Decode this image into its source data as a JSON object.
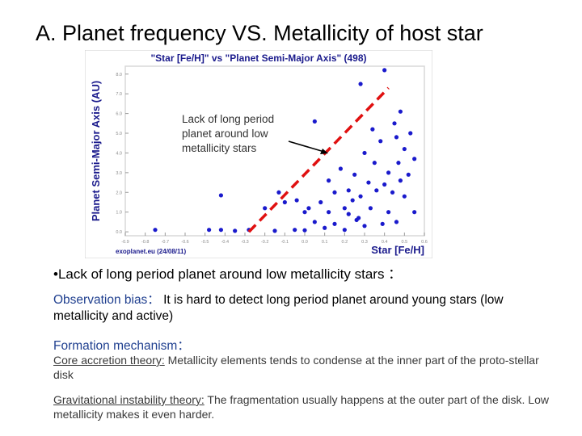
{
  "slide": {
    "title": "A. Planet frequency VS. Metallicity of host star",
    "bullet": "•Lack of long period planet around low metallicity stars ：",
    "observation_label": "Observation bias：",
    "observation_text": "It is hard to detect long period planet around young stars (low metallicity and active)",
    "formation_label": "Formation mechanism：",
    "core_label": "Core accretion theory:",
    "core_text": " Metallicity elements tends to condense at the inner part of the proto-stellar disk",
    "gravity_label": "Gravitational instability theory:",
    "gravity_text": " The fragmentation usually happens at the outer part of the disk. Low metallicity makes it even harder."
  },
  "chart_data": {
    "type": "scatter",
    "title": "\"Star [Fe/H]\"  vs \"Planet Semi-Major Axis\" (498)",
    "xlabel": "Star [Fe/H]",
    "ylabel": "Planet Semi-Major Axis (AU)",
    "source": "exoplanet.eu (24/08/11)",
    "annotation": [
      "Lack of long period",
      "planet around low",
      "metallicity stars"
    ],
    "xlim": [
      -0.9,
      0.6
    ],
    "ylim": [
      -0.2,
      8.4
    ],
    "grid": false,
    "colors": {
      "point": "#1a1acc",
      "boundary": "#e01010",
      "border": "#d8d8d8"
    },
    "boundary_line": [
      [
        -0.28,
        0.0
      ],
      [
        0.42,
        7.3
      ]
    ],
    "x_ticks": [
      "-0.9",
      "-0.8",
      "-0.7",
      "-0.6",
      "-0.5",
      "-0.4",
      "-0.3",
      "-0.2",
      "-0.1",
      "0.0",
      "0.1",
      "0.2",
      "0.3",
      "0.4",
      "0.5",
      "0.6"
    ],
    "y_ticks": [
      "0.0",
      "1.0",
      "2.0",
      "3.0",
      "4.0",
      "5.0",
      "6.0",
      "7.0",
      "8.0"
    ],
    "points": [
      [
        -0.75,
        0.1
      ],
      [
        -0.48,
        0.1
      ],
      [
        -0.42,
        0.1
      ],
      [
        -0.35,
        0.05
      ],
      [
        -0.28,
        0.1
      ],
      [
        -0.15,
        0.05
      ],
      [
        -0.05,
        0.1
      ],
      [
        0.0,
        0.08
      ],
      [
        -0.42,
        1.85
      ],
      [
        -0.2,
        1.2
      ],
      [
        -0.13,
        2.0
      ],
      [
        -0.1,
        1.5
      ],
      [
        0.0,
        1.0
      ],
      [
        0.05,
        5.6
      ],
      [
        0.08,
        1.5
      ],
      [
        0.12,
        2.6
      ],
      [
        0.18,
        3.2
      ],
      [
        0.22,
        2.1
      ],
      [
        0.26,
        0.6
      ],
      [
        0.15,
        0.4
      ],
      [
        0.28,
        7.5
      ],
      [
        0.4,
        8.2
      ],
      [
        0.45,
        5.5
      ],
      [
        0.46,
        4.8
      ],
      [
        0.5,
        4.2
      ],
      [
        0.55,
        3.7
      ],
      [
        0.3,
        4.0
      ],
      [
        0.35,
        3.5
      ],
      [
        0.48,
        6.1
      ],
      [
        0.52,
        2.9
      ],
      [
        0.32,
        2.5
      ],
      [
        0.28,
        1.8
      ],
      [
        0.42,
        1.0
      ],
      [
        0.1,
        0.2
      ],
      [
        0.05,
        0.5
      ],
      [
        0.02,
        1.2
      ],
      [
        0.2,
        1.2
      ],
      [
        0.24,
        1.6
      ],
      [
        0.38,
        4.6
      ],
      [
        0.42,
        3.0
      ],
      [
        0.53,
        5.0
      ],
      [
        0.47,
        3.5
      ],
      [
        0.36,
        2.1
      ],
      [
        0.22,
        0.9
      ],
      [
        0.3,
        0.3
      ],
      [
        0.46,
        0.5
      ],
      [
        0.5,
        1.8
      ],
      [
        0.55,
        1.0
      ],
      [
        0.15,
        2.0
      ],
      [
        -0.04,
        1.6
      ],
      [
        0.34,
        5.2
      ],
      [
        0.25,
        2.9
      ],
      [
        0.4,
        2.4
      ],
      [
        0.33,
        1.2
      ],
      [
        0.44,
        2.0
      ],
      [
        0.27,
        0.7
      ],
      [
        0.2,
        0.1
      ],
      [
        0.48,
        2.6
      ],
      [
        0.39,
        0.4
      ],
      [
        0.12,
        1.0
      ]
    ]
  }
}
